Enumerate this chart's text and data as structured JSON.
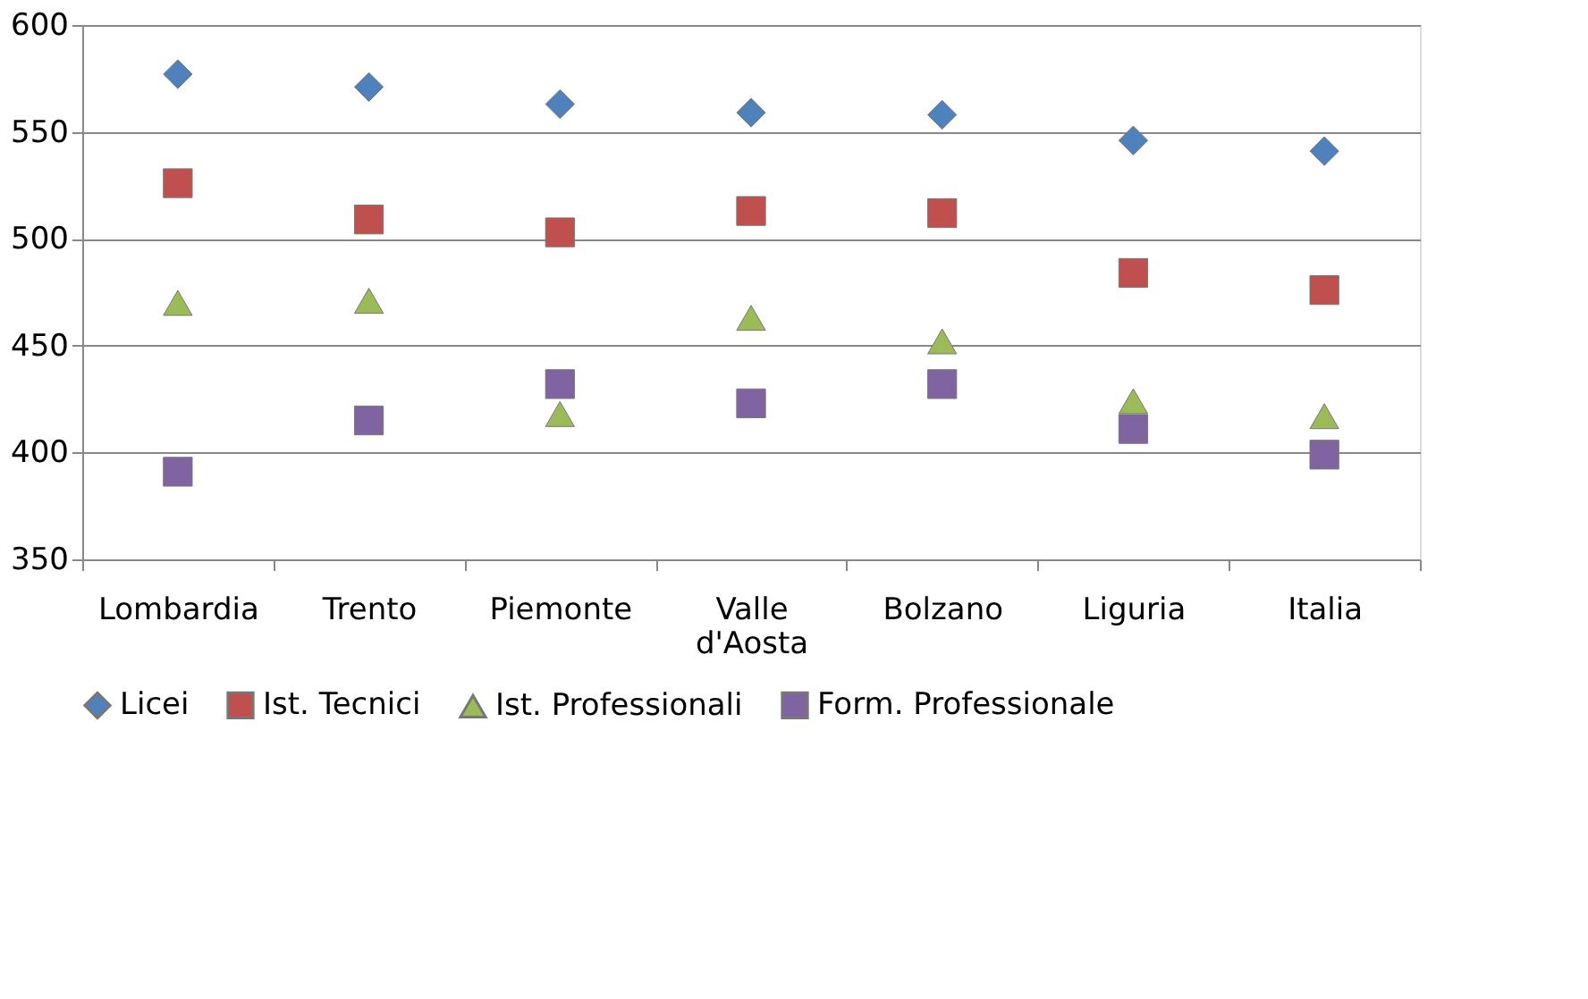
{
  "chart_data": {
    "type": "scatter",
    "categories": [
      "Lombardia",
      "Trento",
      "Piemonte",
      "Valle d'Aosta",
      "Bolzano",
      "Liguria",
      "Italia"
    ],
    "series": [
      {
        "name": "Licei",
        "color": "#4f81bd",
        "marker": "diamond",
        "values": [
          577,
          571,
          563,
          559,
          558,
          546,
          541
        ]
      },
      {
        "name": "Ist. Tecnici",
        "color": "#c0504d",
        "marker": "square",
        "values": [
          526,
          509,
          503,
          513,
          512,
          484,
          476
        ]
      },
      {
        "name": "Ist. Professionali",
        "color": "#9bbb59",
        "marker": "triangle",
        "values": [
          470,
          471,
          418,
          463,
          452,
          424,
          417
        ]
      },
      {
        "name": "Form. Professionale",
        "color": "#8064a2",
        "marker": "square",
        "values": [
          391,
          415,
          432,
          423,
          432,
          411,
          399
        ]
      }
    ],
    "ylim": [
      350,
      600
    ],
    "yticks": [
      350,
      400,
      450,
      500,
      550,
      600
    ],
    "grid": "y",
    "legend": "bottom"
  }
}
